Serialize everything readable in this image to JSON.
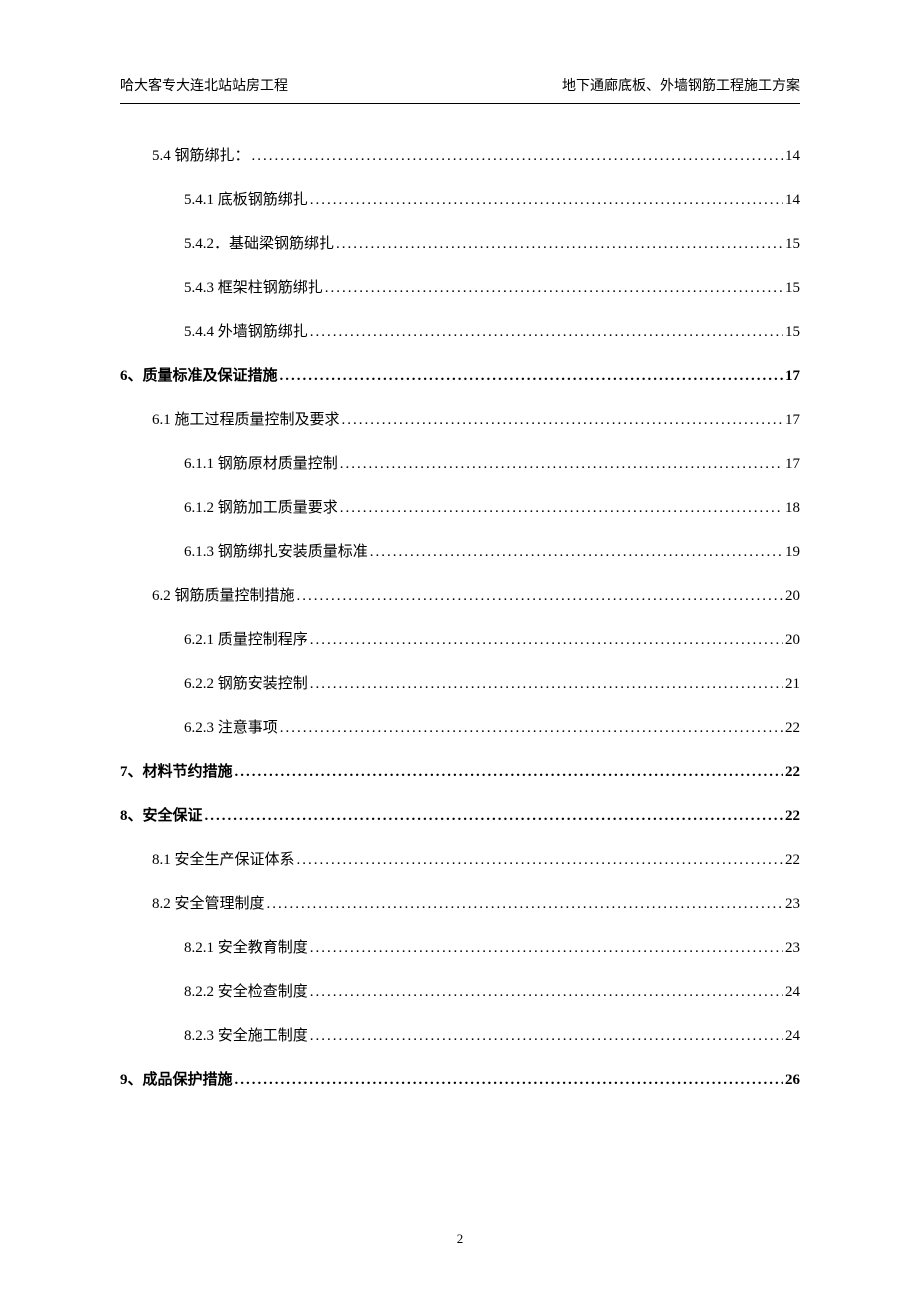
{
  "header": {
    "left": "哈大客专大连北站站房工程",
    "right": "地下通廊底板、外墙钢筋工程施工方案"
  },
  "toc": [
    {
      "level": 2,
      "label": "5.4 钢筋绑扎：",
      "page": "14"
    },
    {
      "level": 3,
      "label": "5.4.1  底板钢筋绑扎",
      "page": "14"
    },
    {
      "level": 3,
      "label": "5.4.2．基础梁钢筋绑扎",
      "page": "15"
    },
    {
      "level": 3,
      "label": "5.4.3    框架柱钢筋绑扎",
      "page": "15"
    },
    {
      "level": 3,
      "label": "5.4.4  外墙钢筋绑扎",
      "page": "15"
    },
    {
      "level": 1,
      "label": "6、质量标准及保证措施",
      "page": "17"
    },
    {
      "level": 2,
      "label": "6.1  施工过程质量控制及要求",
      "page": "17"
    },
    {
      "level": 3,
      "label": "6.1.1  钢筋原材质量控制",
      "page": "17"
    },
    {
      "level": 3,
      "label": "6.1.2  钢筋加工质量要求",
      "page": "18"
    },
    {
      "level": 3,
      "label": "6.1.3 钢筋绑扎安装质量标准",
      "page": "19"
    },
    {
      "level": 2,
      "label": "6.2 钢筋质量控制措施",
      "page": "20"
    },
    {
      "level": 3,
      "label": "6.2.1  质量控制程序",
      "page": "20"
    },
    {
      "level": 3,
      "label": "6.2.2  钢筋安装控制",
      "page": "21"
    },
    {
      "level": 3,
      "label": "6.2.3  注意事项",
      "page": "22"
    },
    {
      "level": 1,
      "label": "7、材料节约措施",
      "page": "22"
    },
    {
      "level": 1,
      "label": "8、安全保证",
      "page": "22"
    },
    {
      "level": 2,
      "label": "8.1  安全生产保证体系",
      "page": "22"
    },
    {
      "level": 2,
      "label": "8.2  安全管理制度",
      "page": "23"
    },
    {
      "level": 3,
      "label": "8.2.1 安全教育制度",
      "page": "23"
    },
    {
      "level": 3,
      "label": "8.2.2 安全检查制度",
      "page": "24"
    },
    {
      "level": 3,
      "label": "8.2.3 安全施工制度",
      "page": "24"
    },
    {
      "level": 1,
      "label": "9、成品保护措施",
      "page": "26"
    }
  ],
  "page_number": "2"
}
